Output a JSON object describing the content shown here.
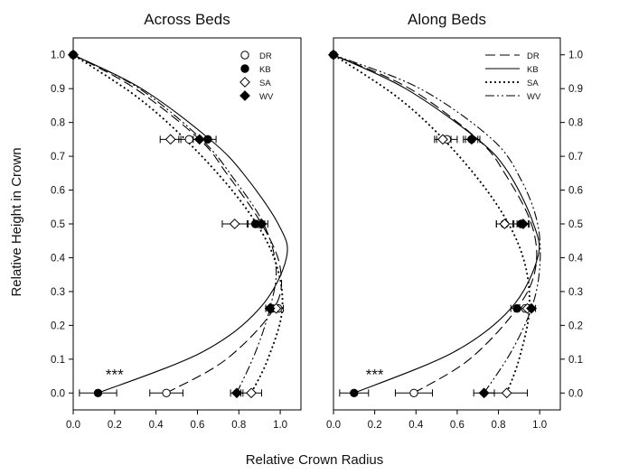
{
  "figure": {
    "xlabel": "Relative Crown Radius",
    "ylabel": "Relative Height in Crown"
  },
  "chart_data": [
    {
      "type": "line",
      "title": "Across Beds",
      "xlabel": "Relative Crown Radius",
      "ylabel": "Relative Height in Crown",
      "xlim": [
        0.0,
        1.1
      ],
      "ylim": [
        -0.05,
        1.05
      ],
      "xticks": [
        "0.0",
        "0.2",
        "0.4",
        "0.6",
        "0.8",
        "1.0"
      ],
      "yticks": [
        "0.0",
        "0.1",
        "0.2",
        "0.3",
        "0.4",
        "0.5",
        "0.6",
        "0.7",
        "0.8",
        "0.9",
        "1.0"
      ],
      "legend": {
        "position": "top-right",
        "style": "markers",
        "entries": [
          "DR",
          "KB",
          "SA",
          "WV"
        ]
      },
      "annotation": {
        "text": "***",
        "x": 0.2,
        "y": 0.04
      },
      "series": [
        {
          "name": "DR",
          "marker": "open-circle",
          "line": "dashed",
          "points": [
            {
              "y": 0.0,
              "x": 0.45,
              "err": 0.08
            },
            {
              "y": 0.25,
              "x": 0.99,
              "err": 0.025
            },
            {
              "y": 0.5,
              "x": 0.9,
              "err": 0.025
            },
            {
              "y": 0.75,
              "x": 0.56,
              "err": 0.05
            },
            {
              "y": 1.0,
              "x": 0.0
            }
          ],
          "curve": [
            [
              0.45,
              0.0
            ],
            [
              0.74,
              0.1
            ],
            [
              0.97,
              0.25
            ],
            [
              1.0,
              0.37
            ],
            [
              0.91,
              0.5
            ],
            [
              0.74,
              0.65
            ],
            [
              0.61,
              0.75
            ],
            [
              0.3,
              0.9
            ],
            [
              0.0,
              1.0
            ]
          ]
        },
        {
          "name": "KB",
          "marker": "filled-circle",
          "line": "solid",
          "points": [
            {
              "y": 0.0,
              "x": 0.12,
              "err": 0.09
            },
            {
              "y": 0.25,
              "x": 0.96,
              "err": 0.03
            },
            {
              "y": 0.5,
              "x": 0.88,
              "err": 0.035
            },
            {
              "y": 0.75,
              "x": 0.65,
              "err": 0.04
            },
            {
              "y": 1.0,
              "x": 0.0
            }
          ],
          "curve": [
            [
              0.12,
              0.0
            ],
            [
              0.62,
              0.12
            ],
            [
              0.9,
              0.25
            ],
            [
              1.03,
              0.4
            ],
            [
              0.99,
              0.5
            ],
            [
              0.82,
              0.65
            ],
            [
              0.66,
              0.75
            ],
            [
              0.33,
              0.9
            ],
            [
              0.0,
              1.0
            ]
          ]
        },
        {
          "name": "SA",
          "marker": "open-diamond",
          "line": "dotted",
          "points": [
            {
              "y": 0.0,
              "x": 0.86,
              "err": 0.05
            },
            {
              "y": 0.25,
              "x": 0.98,
              "err": 0.02
            },
            {
              "y": 0.5,
              "x": 0.78,
              "err": 0.06
            },
            {
              "y": 0.75,
              "x": 0.47,
              "err": 0.05
            },
            {
              "y": 1.0,
              "x": 0.0
            }
          ],
          "curve": [
            [
              0.86,
              0.0
            ],
            [
              0.94,
              0.1
            ],
            [
              1.01,
              0.25
            ],
            [
              0.97,
              0.4
            ],
            [
              0.83,
              0.55
            ],
            [
              0.59,
              0.72
            ],
            [
              0.32,
              0.87
            ],
            [
              0.0,
              1.0
            ]
          ]
        },
        {
          "name": "WV",
          "marker": "filled-diamond",
          "line": "dash-dot-dot",
          "points": [
            {
              "y": 0.0,
              "x": 0.79,
              "err": 0.03
            },
            {
              "y": 0.25,
              "x": 0.95,
              "err": 0.02
            },
            {
              "y": 0.5,
              "x": 0.91,
              "err": 0.03
            },
            {
              "y": 0.75,
              "x": 0.61,
              "err": 0.03
            },
            {
              "y": 1.0,
              "x": 0.0
            }
          ],
          "curve": [
            [
              0.79,
              0.0
            ],
            [
              0.88,
              0.12
            ],
            [
              0.95,
              0.25
            ],
            [
              0.98,
              0.37
            ],
            [
              0.92,
              0.5
            ],
            [
              0.78,
              0.63
            ],
            [
              0.62,
              0.75
            ],
            [
              0.32,
              0.9
            ],
            [
              0.0,
              1.0
            ]
          ]
        }
      ]
    },
    {
      "type": "line",
      "title": "Along Beds",
      "xlabel": "Relative Crown Radius",
      "ylabel": "Relative Height in Crown",
      "xlim": [
        0.0,
        1.1
      ],
      "ylim": [
        -0.05,
        1.05
      ],
      "xticks": [
        "0.0",
        "0.2",
        "0.4",
        "0.6",
        "0.8",
        "1.0"
      ],
      "yticks": [
        "0.0",
        "0.1",
        "0.2",
        "0.3",
        "0.4",
        "0.5",
        "0.6",
        "0.7",
        "0.8",
        "0.9",
        "1.0"
      ],
      "legend": {
        "position": "top-right",
        "style": "lines",
        "entries": [
          "DR",
          "KB",
          "SA",
          "WV"
        ]
      },
      "annotation": {
        "text": "***",
        "x": 0.2,
        "y": 0.04
      },
      "series": [
        {
          "name": "DR",
          "marker": "open-circle",
          "line": "dashed",
          "points": [
            {
              "y": 0.0,
              "x": 0.39,
              "err": 0.09
            },
            {
              "y": 0.25,
              "x": 0.93,
              "err": 0.03
            },
            {
              "y": 0.5,
              "x": 0.83,
              "err": 0.04
            },
            {
              "y": 0.75,
              "x": 0.55,
              "err": 0.05
            },
            {
              "y": 1.0,
              "x": 0.0
            }
          ],
          "curve": [
            [
              0.39,
              0.0
            ],
            [
              0.66,
              0.1
            ],
            [
              0.89,
              0.25
            ],
            [
              0.98,
              0.37
            ],
            [
              0.96,
              0.5
            ],
            [
              0.83,
              0.65
            ],
            [
              0.7,
              0.75
            ],
            [
              0.37,
              0.9
            ],
            [
              0.0,
              1.0
            ]
          ]
        },
        {
          "name": "KB",
          "marker": "filled-circle",
          "line": "solid",
          "points": [
            {
              "y": 0.0,
              "x": 0.1,
              "err": 0.07
            },
            {
              "y": 0.25,
              "x": 0.89,
              "err": 0.03
            },
            {
              "y": 0.5,
              "x": 0.91,
              "err": 0.035
            },
            {
              "y": 0.75,
              "x": 0.67,
              "err": 0.04
            },
            {
              "y": 1.0,
              "x": 0.0
            }
          ],
          "curve": [
            [
              0.1,
              0.0
            ],
            [
              0.58,
              0.12
            ],
            [
              0.86,
              0.25
            ],
            [
              0.99,
              0.4
            ],
            [
              0.97,
              0.5
            ],
            [
              0.85,
              0.65
            ],
            [
              0.7,
              0.75
            ],
            [
              0.35,
              0.9
            ],
            [
              0.0,
              1.0
            ]
          ]
        },
        {
          "name": "SA",
          "marker": "open-diamond",
          "line": "dotted",
          "points": [
            {
              "y": 0.0,
              "x": 0.84,
              "err": 0.1
            },
            {
              "y": 0.25,
              "x": 0.94,
              "err": 0.02
            },
            {
              "y": 0.5,
              "x": 0.83,
              "err": 0.04
            },
            {
              "y": 0.75,
              "x": 0.53,
              "err": 0.04
            },
            {
              "y": 1.0,
              "x": 0.0
            }
          ],
          "curve": [
            [
              0.84,
              0.0
            ],
            [
              0.9,
              0.1
            ],
            [
              0.95,
              0.25
            ],
            [
              0.92,
              0.4
            ],
            [
              0.8,
              0.55
            ],
            [
              0.58,
              0.72
            ],
            [
              0.32,
              0.87
            ],
            [
              0.0,
              1.0
            ]
          ]
        },
        {
          "name": "WV",
          "marker": "filled-diamond",
          "line": "dash-dot-dot",
          "points": [
            {
              "y": 0.0,
              "x": 0.73,
              "err": 0.05
            },
            {
              "y": 0.25,
              "x": 0.96,
              "err": 0.02
            },
            {
              "y": 0.5,
              "x": 0.92,
              "err": 0.03
            },
            {
              "y": 0.75,
              "x": 0.67,
              "err": 0.03
            },
            {
              "y": 1.0,
              "x": 0.0
            }
          ],
          "curve": [
            [
              0.73,
              0.0
            ],
            [
              0.86,
              0.12
            ],
            [
              0.96,
              0.25
            ],
            [
              1.0,
              0.37
            ],
            [
              0.99,
              0.5
            ],
            [
              0.91,
              0.63
            ],
            [
              0.77,
              0.75
            ],
            [
              0.42,
              0.9
            ],
            [
              0.0,
              1.0
            ]
          ]
        }
      ]
    }
  ]
}
